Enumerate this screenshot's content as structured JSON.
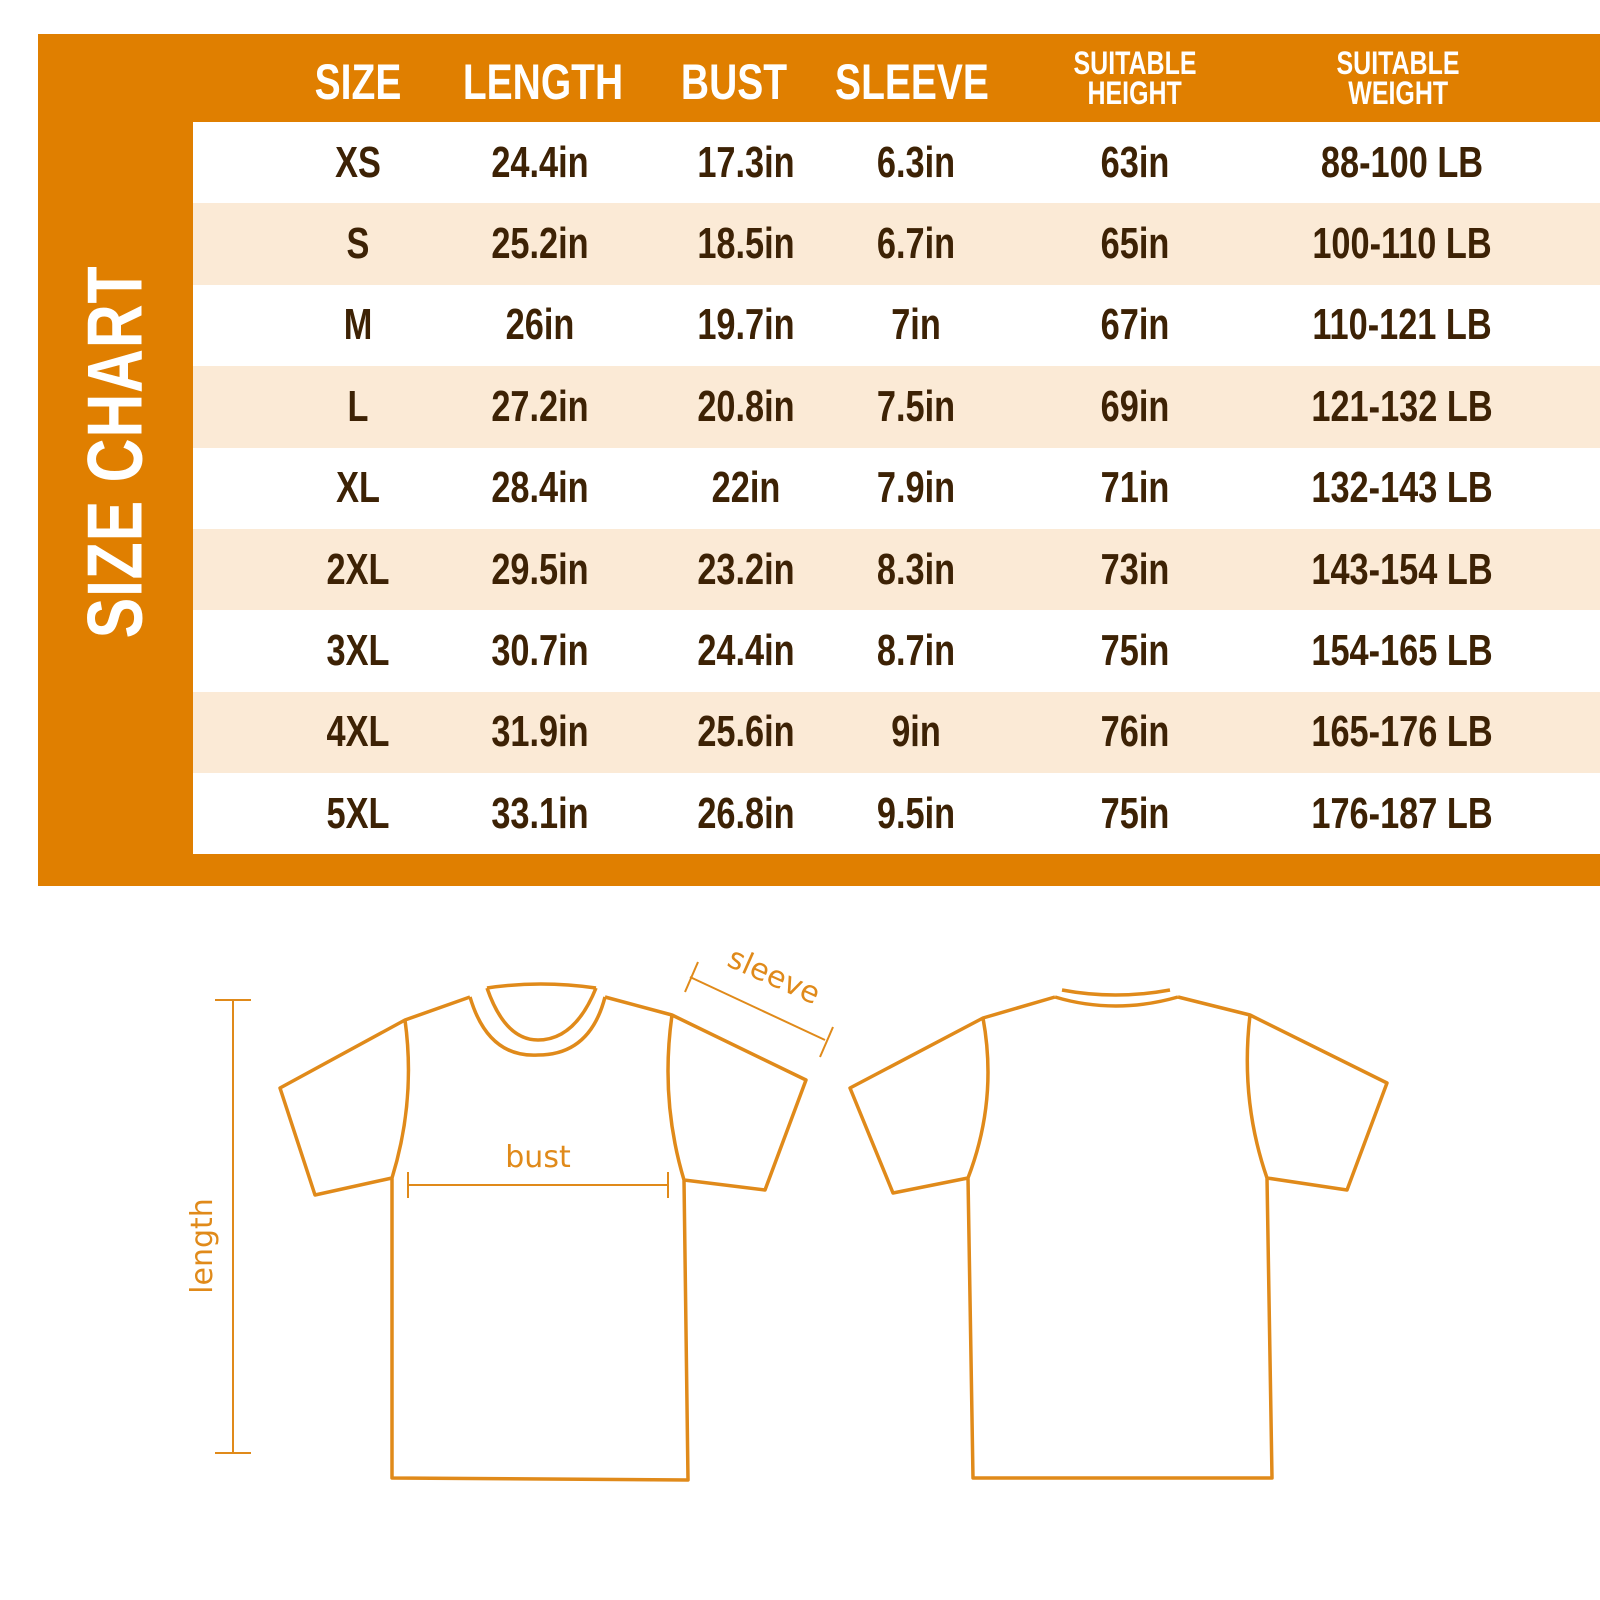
{
  "title": "SIZE CHART",
  "colors": {
    "accent": "#E07F00",
    "stripe": "#FBEAD6",
    "text": "#3D2205",
    "outline": "#E08A1A"
  },
  "headers": [
    "SIZE",
    "LENGTH",
    "BUST",
    "SLEEVE",
    "SUITABLE HEIGHT",
    "SUITABLE WEIGHT"
  ],
  "header_lines": {
    "height": [
      "SUITABLE",
      "HEIGHT"
    ],
    "weight": [
      "SUITABLE",
      "WEIGHT"
    ]
  },
  "rows": [
    [
      "XS",
      "24.4in",
      "17.3in",
      "6.3in",
      "63in",
      "88-100 LB"
    ],
    [
      "S",
      "25.2in",
      "18.5in",
      "6.7in",
      "65in",
      "100-110 LB"
    ],
    [
      "M",
      "26in",
      "19.7in",
      "7in",
      "67in",
      "110-121 LB"
    ],
    [
      "L",
      "27.2in",
      "20.8in",
      "7.5in",
      "69in",
      "121-132 LB"
    ],
    [
      "XL",
      "28.4in",
      "22in",
      "7.9in",
      "71in",
      "132-143 LB"
    ],
    [
      "2XL",
      "29.5in",
      "23.2in",
      "8.3in",
      "73in",
      "143-154 LB"
    ],
    [
      "3XL",
      "30.7in",
      "24.4in",
      "8.7in",
      "75in",
      "154-165 LB"
    ],
    [
      "4XL",
      "31.9in",
      "25.6in",
      "9in",
      "76in",
      "165-176 LB"
    ],
    [
      "5XL",
      "33.1in",
      "26.8in",
      "9.5in",
      "75in",
      "176-187 LB"
    ]
  ],
  "diagram": {
    "sleeve": "sleeve",
    "bust": "bust",
    "length": "length"
  }
}
